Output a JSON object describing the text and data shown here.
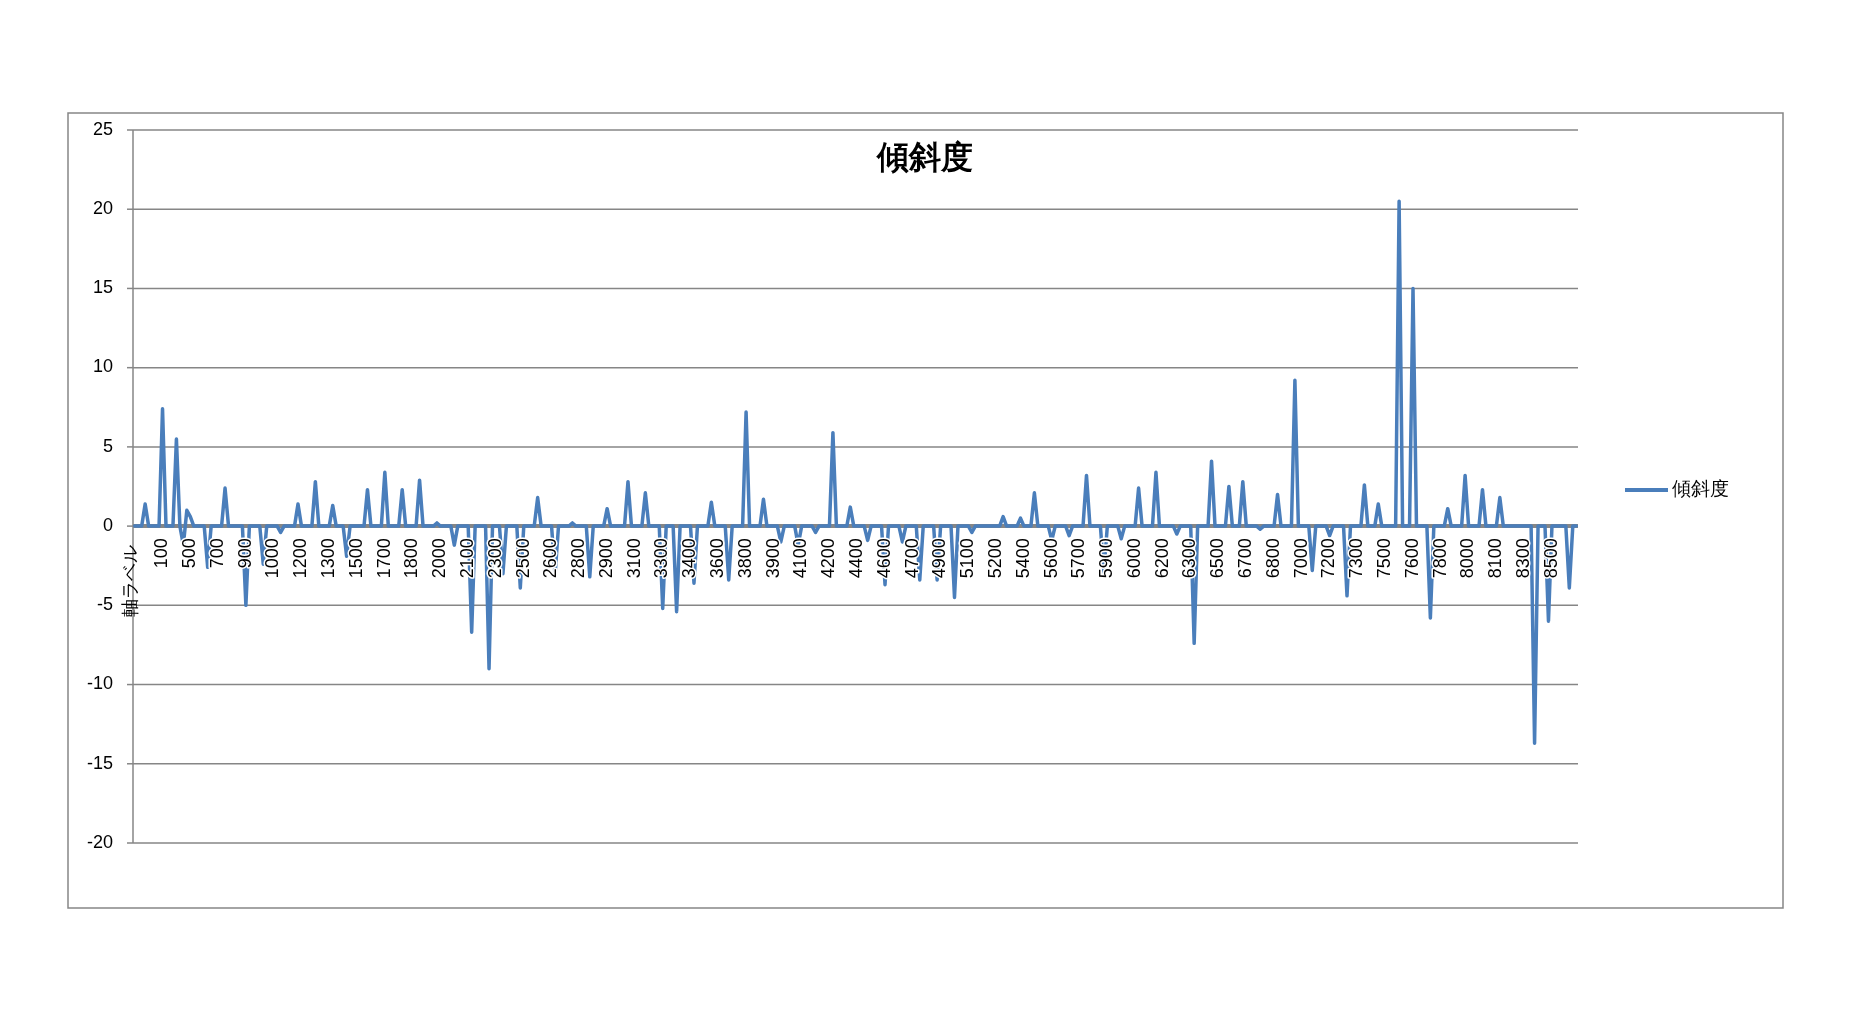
{
  "chart_data": {
    "type": "line",
    "title": "傾斜度",
    "ylabel": "軸ラベル",
    "categories": [
      null,
      null,
      null,
      null,
      null,
      null,
      null,
      null,
      "100",
      null,
      null,
      null,
      null,
      null,
      null,
      null,
      "500",
      null,
      null,
      null,
      null,
      null,
      null,
      null,
      "700",
      null,
      null,
      null,
      null,
      null,
      null,
      null,
      "900",
      null,
      null,
      null,
      null,
      null,
      null,
      null,
      "1000",
      null,
      null,
      null,
      null,
      null,
      null,
      null,
      "1200",
      null,
      null,
      null,
      null,
      null,
      null,
      null,
      "1300",
      null,
      null,
      null,
      null,
      null,
      null,
      null,
      "1500",
      null,
      null,
      null,
      null,
      null,
      null,
      null,
      "1700",
      null,
      null,
      null,
      null,
      null,
      null,
      null,
      "1800",
      null,
      null,
      null,
      null,
      null,
      null,
      null,
      "2000",
      null,
      null,
      null,
      null,
      null,
      null,
      null,
      "2100",
      null,
      null,
      null,
      null,
      null,
      null,
      null,
      "2300",
      null,
      null,
      null,
      null,
      null,
      null,
      null,
      "2500",
      null,
      null,
      null,
      null,
      null,
      null,
      null,
      "2600",
      null,
      null,
      null,
      null,
      null,
      null,
      null,
      "2800",
      null,
      null,
      null,
      null,
      null,
      null,
      null,
      "2900",
      null,
      null,
      null,
      null,
      null,
      null,
      null,
      "3100",
      null,
      null,
      null,
      null,
      null,
      null,
      null,
      "3300",
      null,
      null,
      null,
      null,
      null,
      null,
      null,
      "3400",
      null,
      null,
      null,
      null,
      null,
      null,
      null,
      "3600",
      null,
      null,
      null,
      null,
      null,
      null,
      null,
      "3800",
      null,
      null,
      null,
      null,
      null,
      null,
      null,
      "3900",
      null,
      null,
      null,
      null,
      null,
      null,
      null,
      "4100",
      null,
      null,
      null,
      null,
      null,
      null,
      null,
      "4200",
      null,
      null,
      null,
      null,
      null,
      null,
      null,
      "4400",
      null,
      null,
      null,
      null,
      null,
      null,
      null,
      "4600",
      null,
      null,
      null,
      null,
      null,
      null,
      null,
      "4700",
      null,
      null,
      null,
      null,
      null,
      null,
      null,
      "4900",
      null,
      null,
      null,
      null,
      null,
      null,
      null,
      "5100",
      null,
      null,
      null,
      null,
      null,
      null,
      null,
      "5200",
      null,
      null,
      null,
      null,
      null,
      null,
      null,
      "5400",
      null,
      null,
      null,
      null,
      null,
      null,
      null,
      "5600",
      null,
      null,
      null,
      null,
      null,
      null,
      null,
      "5700",
      null,
      null,
      null,
      null,
      null,
      null,
      null,
      "5900",
      null,
      null,
      null,
      null,
      null,
      null,
      null,
      "6000",
      null,
      null,
      null,
      null,
      null,
      null,
      null,
      "6200",
      null,
      null,
      null,
      null,
      null,
      null,
      null,
      "6300",
      null,
      null,
      null,
      null,
      null,
      null,
      null,
      "6500",
      null,
      null,
      null,
      null,
      null,
      null,
      null,
      "6700",
      null,
      null,
      null,
      null,
      null,
      null,
      null,
      "6800",
      null,
      null,
      null,
      null,
      null,
      null,
      null,
      "7000",
      null,
      null,
      null,
      null,
      null,
      null,
      null,
      "7200",
      null,
      null,
      null,
      null,
      null,
      null,
      null,
      "7300",
      null,
      null,
      null,
      null,
      null,
      null,
      null,
      "7500",
      null,
      null,
      null,
      null,
      null,
      null,
      null,
      "7600",
      null,
      null,
      null,
      null,
      null,
      null,
      null,
      "7800",
      null,
      null,
      null,
      null,
      null,
      null,
      null,
      "8000",
      null,
      null,
      null,
      null,
      null,
      null,
      null,
      "8100",
      null,
      null,
      null,
      null,
      null,
      null,
      null,
      "8300",
      null,
      null,
      null,
      null,
      null,
      null,
      null,
      "8500",
      null,
      null,
      null,
      null,
      null,
      null,
      null
    ],
    "series": [
      {
        "name": "傾斜度",
        "color": "#4a7ebb",
        "values": [
          0,
          0,
          0,
          1.4,
          0,
          0,
          0,
          0,
          7.4,
          0,
          0,
          0,
          5.5,
          0,
          -1.2,
          1.0,
          0.6,
          0,
          0,
          0,
          0,
          -2.6,
          0,
          0,
          0,
          0,
          2.4,
          0,
          0,
          0,
          0,
          0,
          -5.0,
          0,
          0,
          0,
          0,
          -2.4,
          0,
          0,
          0,
          0,
          -0.4,
          0,
          0,
          0,
          0,
          1.4,
          0,
          0,
          0,
          0,
          2.8,
          0,
          0,
          0,
          0,
          1.3,
          0,
          0,
          0,
          -1.9,
          0,
          0,
          0,
          0,
          0,
          2.3,
          0,
          0,
          0,
          0,
          3.4,
          0,
          0,
          0,
          0,
          2.3,
          0,
          0,
          0,
          0,
          2.9,
          0,
          0,
          0,
          0,
          0.2,
          0,
          0,
          0,
          0,
          -1.2,
          0,
          0,
          0,
          0,
          -6.7,
          0,
          0,
          0,
          0,
          -9.0,
          0,
          0,
          0,
          -3.0,
          0,
          0,
          0,
          0,
          -3.9,
          0,
          0,
          0,
          0,
          1.8,
          0,
          0,
          0,
          0,
          -3.1,
          0,
          0,
          0,
          0,
          0.2,
          0,
          0,
          0,
          0,
          -3.2,
          0,
          0,
          0,
          0,
          1.1,
          0,
          0,
          0,
          0,
          0,
          2.8,
          0,
          0,
          0,
          0,
          2.1,
          0,
          0,
          0,
          0,
          -5.2,
          0,
          0,
          0,
          -5.4,
          0,
          0,
          0,
          0,
          -3.6,
          0,
          0,
          0,
          0,
          1.5,
          0,
          0,
          0,
          0,
          -3.4,
          0,
          0,
          0,
          0,
          7.2,
          0,
          0,
          0,
          0,
          1.7,
          0,
          0,
          0,
          0,
          -1.0,
          0,
          0,
          0,
          0,
          -1.2,
          0,
          0,
          0,
          0,
          -0.4,
          0,
          0,
          0,
          0,
          5.9,
          0,
          0,
          0,
          0,
          1.2,
          0,
          0,
          0,
          0,
          -0.9,
          0,
          0,
          0,
          0,
          -3.7,
          0,
          0,
          0,
          0,
          -1.0,
          0,
          0,
          0,
          0,
          -3.4,
          0,
          0,
          0,
          0,
          -3.4,
          0,
          0,
          0,
          0,
          -4.5,
          0,
          0,
          0,
          0,
          -0.4,
          0,
          0,
          0,
          0,
          0,
          0,
          0,
          0,
          0.6,
          0,
          0,
          0,
          0,
          0.5,
          0,
          0,
          0,
          2.1,
          0,
          0,
          0,
          0,
          -0.9,
          0,
          0,
          0,
          0,
          -0.6,
          0,
          0,
          0,
          0,
          3.2,
          0,
          0,
          0,
          0,
          -2.9,
          0,
          0,
          0,
          0,
          -0.8,
          0,
          0,
          0,
          0,
          2.4,
          0,
          0,
          0,
          0,
          3.4,
          0,
          0,
          0,
          0,
          0,
          -0.5,
          0,
          0,
          0,
          0,
          -7.4,
          0,
          0,
          0,
          0,
          4.1,
          0,
          0,
          0,
          0,
          2.5,
          0,
          0,
          0,
          2.8,
          0,
          0,
          0,
          0,
          -0.2,
          0,
          0,
          0,
          0,
          2.0,
          0,
          0,
          0,
          0,
          9.2,
          0,
          0,
          0,
          0,
          -2.8,
          0,
          0,
          0,
          0,
          -0.6,
          0,
          0,
          0,
          0,
          -4.4,
          0,
          0,
          0,
          0,
          2.6,
          0,
          0,
          0,
          1.4,
          0,
          0,
          0,
          0,
          0,
          20.5,
          0,
          0,
          0,
          15.0,
          0,
          0,
          0,
          0,
          -5.8,
          0,
          0,
          0,
          0,
          1.1,
          0,
          0,
          0,
          0,
          3.2,
          0,
          0,
          0,
          0,
          2.3,
          0,
          0,
          0,
          0,
          1.8,
          0,
          0,
          0,
          0,
          0,
          0,
          0,
          0,
          0,
          -13.7,
          0,
          0,
          0,
          -6.0,
          0,
          0,
          0,
          0,
          0,
          -3.9,
          0,
          0
        ]
      }
    ],
    "ylim": [
      -20,
      25
    ],
    "yticks": [
      -20,
      -15,
      -10,
      -5,
      0,
      5,
      10,
      15,
      20,
      25
    ],
    "grid": "y",
    "legend": "right",
    "marker": "none",
    "line_style": "solid"
  }
}
